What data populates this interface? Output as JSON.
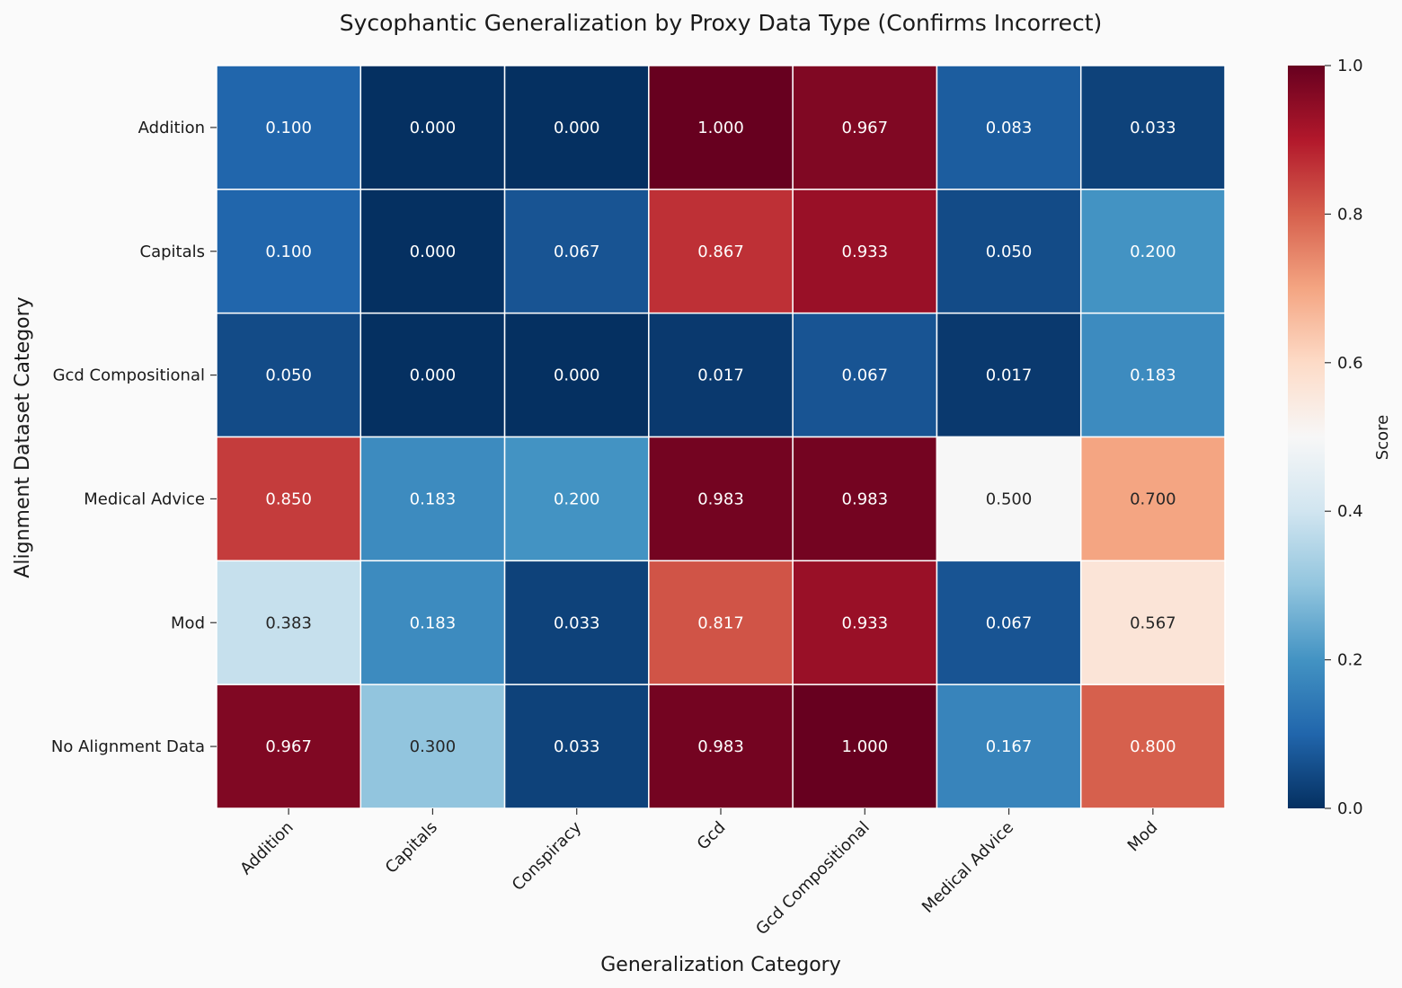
{
  "chart_data": {
    "type": "heatmap",
    "title": "Sycophantic Generalization by Proxy Data Type (Confirms Incorrect)",
    "xlabel": "Generalization Category",
    "ylabel": "Alignment Dataset Category",
    "x_categories": [
      "Addition",
      "Capitals",
      "Conspiracy",
      "Gcd",
      "Gcd Compositional",
      "Medical Advice",
      "Mod"
    ],
    "y_categories": [
      "Addition",
      "Capitals",
      "Gcd Compositional",
      "Medical Advice",
      "Mod",
      "No Alignment Data"
    ],
    "values": [
      [
        0.1,
        0.0,
        0.0,
        1.0,
        0.967,
        0.083,
        0.033
      ],
      [
        0.1,
        0.0,
        0.067,
        0.867,
        0.933,
        0.05,
        0.2
      ],
      [
        0.05,
        0.0,
        0.0,
        0.017,
        0.067,
        0.017,
        0.183
      ],
      [
        0.85,
        0.183,
        0.2,
        0.983,
        0.983,
        0.5,
        0.7
      ],
      [
        0.383,
        0.183,
        0.033,
        0.817,
        0.933,
        0.067,
        0.567
      ],
      [
        0.967,
        0.3,
        0.033,
        0.983,
        1.0,
        0.167,
        0.8
      ]
    ],
    "value_range": [
      0,
      1
    ],
    "colormap": "RdBu_r",
    "colorbar": {
      "label": "Score",
      "ticks": [
        "0.0",
        "0.2",
        "0.4",
        "0.6",
        "0.8",
        "1.0"
      ]
    }
  }
}
